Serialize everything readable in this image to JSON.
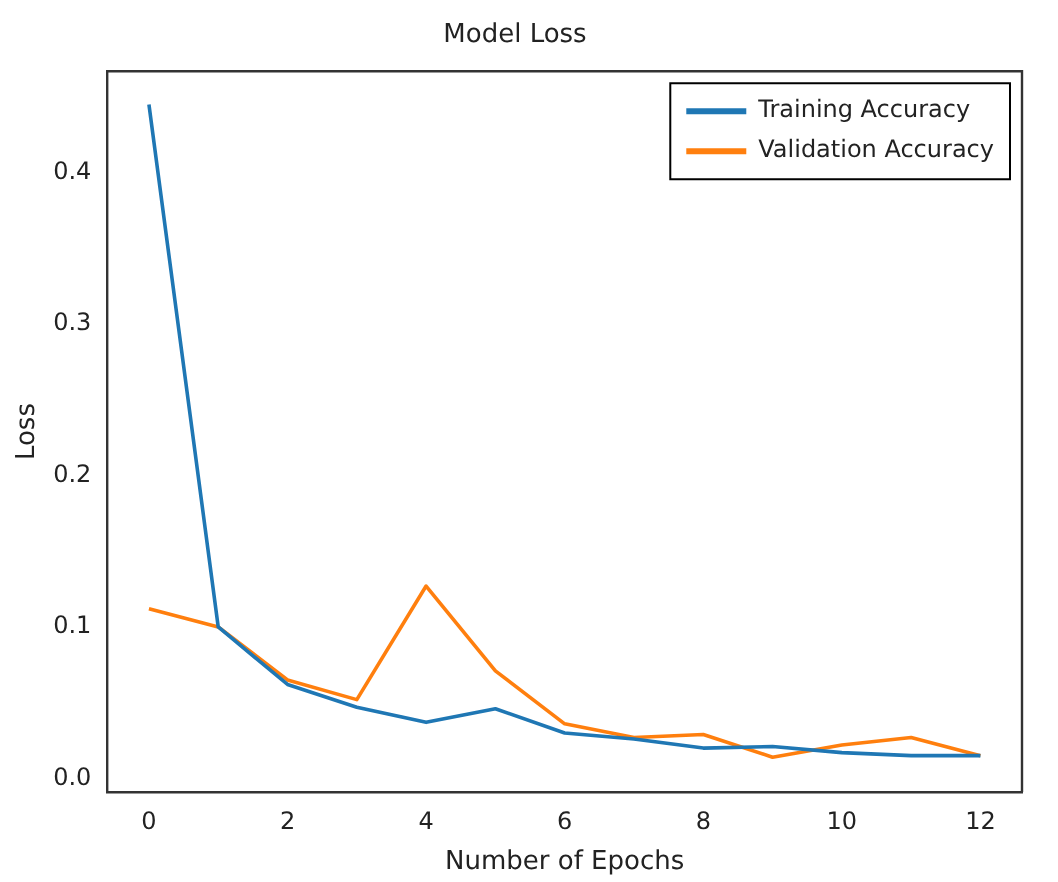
{
  "chart_data": {
    "type": "line",
    "title": "Model Loss",
    "xlabel": "Number of Epochs",
    "ylabel": "Loss",
    "x": [
      0,
      1,
      2,
      3,
      4,
      5,
      6,
      7,
      8,
      9,
      10,
      11,
      12
    ],
    "series": [
      {
        "name": "Training Accuracy",
        "color": "#1f77b4",
        "values": [
          0.445,
          0.1,
          0.062,
          0.047,
          0.037,
          0.046,
          0.03,
          0.026,
          0.02,
          0.021,
          0.017,
          0.015,
          0.015
        ]
      },
      {
        "name": "Validation Accuracy",
        "color": "#ff7f0e",
        "values": [
          0.112,
          0.1,
          0.065,
          0.052,
          0.127,
          0.071,
          0.036,
          0.027,
          0.029,
          0.014,
          0.022,
          0.027,
          0.015
        ]
      }
    ],
    "xlim": [
      -0.6,
      12.6
    ],
    "xticks": [
      0,
      2,
      4,
      6,
      8,
      10,
      12
    ],
    "ylim": [
      -0.009,
      0.467
    ],
    "yticks": [
      {
        "value": 0,
        "label": "0.0"
      },
      {
        "value": 0.1,
        "label": "0.1"
      },
      {
        "value": 0.2,
        "label": "0.2"
      },
      {
        "value": 0.3,
        "label": "0.3"
      },
      {
        "value": 0.4,
        "label": "0.4"
      }
    ],
    "grid": false,
    "legend": "top right",
    "marker": "none",
    "line_style": "solid"
  }
}
